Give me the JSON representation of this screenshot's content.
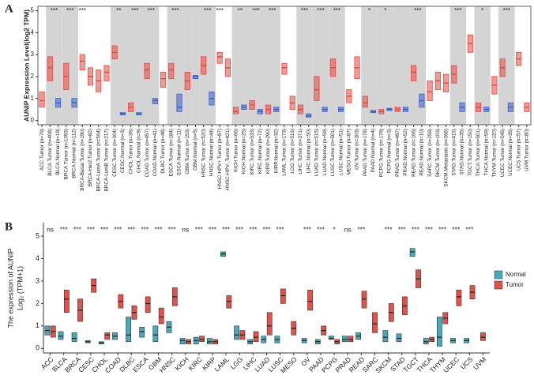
{
  "chart_data": [
    {
      "type": "box",
      "panel": "A",
      "y_label": "AUNIP Expression Level(log2 TPM)",
      "categories": [
        "ACC.Tumor (n=79)",
        "BLCA.Tumor (n=408)",
        "BLCA.Normal (n=19)",
        "BRCA.Tumor (n=1093)",
        "BRCA.Normal (n=112)",
        "BRCA-Basal.Tumor (n=190)",
        "BRCA-Her2.Tumor (n=82)",
        "BRCA-LumA.Tumor (n=564)",
        "BRCA-LumB.Tumor (n=217)",
        "CESC.Tumor (n=304)",
        "CESC.Normal (n=3)",
        "CHOL.Tumor (n=36)",
        "CHOL.Normal (n=9)",
        "COAD.Tumor (n=457)",
        "COAD.Normal (n=41)",
        "DLBC.Tumor (n=48)",
        "ESCA.Tumor (n=184)",
        "ESCA.Normal (n=11)",
        "GBM.Tumor (n=153)",
        "GBM.Normal (n=5)",
        "HNSC.Tumor (n=520)",
        "HNSC.Normal (n=44)",
        "HNSC-HPV+.Tumor (n=97)",
        "HNSC-HPV-.Tumor (n=421)",
        "KICH.Tumor (n=66)",
        "KICH.Normal (n=25)",
        "KIRC.Tumor (n=533)",
        "KIRC.Normal (n=72)",
        "KIRP.Tumor (n=290)",
        "KIRP.Normal (n=32)",
        "LAML.Tumor (n=173)",
        "LGG.Tumor (n=516)",
        "LIHC.Tumor (n=371)",
        "LIHC.Normal (n=50)",
        "LUAD.Tumor (n=515)",
        "LUAD.Normal (n=59)",
        "LUSC.Tumor (n=501)",
        "LUSC.Normal (n=51)",
        "MESO.Tumor (n=87)",
        "OV.Tumor (n=303)",
        "PAAD.Tumor (n=178)",
        "PAAD.Normal (n=4)",
        "PCPG.Tumor (n=179)",
        "PCPG.Normal (n=3)",
        "PRAD.Tumor (n=497)",
        "PRAD.Normal (n=52)",
        "READ.Tumor (n=166)",
        "READ.Normal (n=10)",
        "SARC.Tumor (n=259)",
        "SKCM.Tumor (n=103)",
        "SKCM.Metastasis (n=368)",
        "STAD.Tumor (n=415)",
        "STAD.Normal (n=35)",
        "TGCT.Tumor (n=150)",
        "THCA.Tumor (n=501)",
        "THCA.Normal (n=59)",
        "THYM.Tumor (n=120)",
        "UCEC.Tumor (n=545)",
        "UCEC.Normal (n=35)",
        "UCS.Tumor (n=57)",
        "UVM.Tumor (n=80)"
      ],
      "values": [
        0.9,
        2.4,
        0.8,
        2.0,
        0.8,
        2.7,
        2.0,
        1.8,
        2.2,
        3.1,
        0.3,
        0.6,
        0.3,
        2.3,
        0.9,
        1.9,
        2.3,
        0.6,
        1.8,
        2.0,
        2.5,
        1.0,
        2.9,
        2.4,
        0.4,
        0.6,
        0.7,
        0.4,
        0.5,
        0.5,
        2.4,
        0.8,
        0.5,
        0.2,
        1.4,
        0.5,
        2.4,
        0.5,
        1.1,
        2.4,
        0.8,
        0.4,
        0.4,
        0.5,
        0.5,
        0.5,
        2.2,
        0.9,
        1.3,
        1.8,
        1.7,
        2.1,
        0.6,
        3.5,
        0.6,
        0.5,
        1.6,
        2.4,
        0.6,
        2.8,
        0.6
      ],
      "q1": [
        0.6,
        1.8,
        0.6,
        1.4,
        0.6,
        2.3,
        1.6,
        1.3,
        1.8,
        2.8,
        0.25,
        0.4,
        0.25,
        1.9,
        0.75,
        1.5,
        1.9,
        0.4,
        1.4,
        1.9,
        2.1,
        0.7,
        2.6,
        2.0,
        0.3,
        0.5,
        0.5,
        0.3,
        0.3,
        0.4,
        2.1,
        0.5,
        0.3,
        0.15,
        0.9,
        0.4,
        2.0,
        0.4,
        0.8,
        1.9,
        0.6,
        0.35,
        0.3,
        0.45,
        0.4,
        0.4,
        1.8,
        0.6,
        0.9,
        1.4,
        1.3,
        1.7,
        0.4,
        3.1,
        0.4,
        0.4,
        1.2,
        2.0,
        0.4,
        2.5,
        0.4
      ],
      "q3": [
        1.3,
        2.9,
        1.0,
        2.6,
        1.0,
        3.0,
        2.4,
        2.3,
        2.5,
        3.4,
        0.35,
        0.8,
        0.35,
        2.6,
        1.0,
        2.2,
        2.6,
        1.2,
        2.2,
        2.05,
        2.9,
        1.3,
        3.1,
        2.8,
        0.6,
        0.7,
        0.9,
        0.5,
        0.7,
        0.6,
        2.6,
        1.1,
        0.7,
        0.3,
        2.0,
        0.6,
        2.8,
        0.6,
        1.4,
        2.9,
        1.1,
        0.45,
        0.5,
        0.55,
        0.6,
        0.6,
        2.5,
        1.2,
        1.8,
        2.2,
        2.1,
        2.5,
        0.8,
        3.9,
        0.8,
        0.6,
        2.0,
        2.8,
        0.8,
        3.1,
        0.8
      ],
      "significance": [
        null,
        "***",
        null,
        "***",
        null,
        "***",
        null,
        null,
        null,
        "**",
        null,
        "***",
        null,
        "***",
        null,
        null,
        "***",
        null,
        null,
        null,
        "***",
        null,
        "***",
        null,
        "**",
        null,
        "***",
        null,
        "***",
        null,
        null,
        null,
        "***",
        null,
        "***",
        null,
        "***",
        null,
        null,
        null,
        "*",
        null,
        "*",
        null,
        null,
        null,
        "***",
        null,
        null,
        null,
        null,
        "***",
        null,
        null,
        "*",
        null,
        null,
        "***",
        null,
        null,
        null
      ],
      "tumor_color": "#e8473e",
      "normal_color": "#3a5fcd",
      "shade_color": "#d4d4d4",
      "ylim": [
        -0.2,
        5.2
      ],
      "yticks": [
        0,
        1,
        2,
        3,
        4,
        5
      ]
    },
    {
      "type": "grouped_box",
      "panel": "B",
      "y_label": "The expression of AUNIP",
      "y_label2": "Log₂ (TPM+1)",
      "categories": [
        "ACC",
        "BLCA",
        "BRCA",
        "CESC",
        "CHOL",
        "COAD",
        "DLBC",
        "ESCA",
        "GBM",
        "HNSC",
        "KICH",
        "KIRC",
        "KIRP",
        "LAML",
        "LGG",
        "LIHC",
        "LUAD",
        "LUSC",
        "MESO",
        "OV",
        "PAAD",
        "PCPG",
        "PRAD",
        "READ",
        "SARC",
        "SKCM",
        "STAD",
        "TGCT",
        "THCA",
        "THYM",
        "UCEC",
        "UCS",
        "UVM"
      ],
      "series": [
        {
          "name": "Normal",
          "color": "#4aa9b8",
          "values": [
            0.8,
            0.55,
            0.45,
            0.3,
            0.25,
            0.55,
            0.6,
            0.75,
            0.6,
            0.95,
            0.35,
            0.35,
            0.3,
            4.2,
            0.6,
            0.3,
            0.4,
            0.4,
            null,
            0.35,
            0.3,
            0.45,
            0.4,
            0.55,
            null,
            0.5,
            0.45,
            4.3,
            0.3,
            0.5,
            0.35,
            0.35,
            null
          ],
          "q1": [
            0.6,
            0.4,
            0.3,
            0.25,
            0.2,
            0.4,
            0.3,
            0.5,
            0.3,
            0.7,
            0.2,
            0.2,
            0.2,
            4.1,
            0.4,
            0.2,
            0.25,
            0.25,
            null,
            0.25,
            0.2,
            0.4,
            0.3,
            0.4,
            null,
            0.3,
            0.3,
            4.1,
            0.2,
            0.1,
            0.25,
            0.25,
            null
          ],
          "q3": [
            1.0,
            0.75,
            0.7,
            0.35,
            0.3,
            0.7,
            1.4,
            0.95,
            1.0,
            1.2,
            0.45,
            0.5,
            0.45,
            4.3,
            1.0,
            0.4,
            0.55,
            0.55,
            null,
            0.45,
            0.4,
            0.55,
            0.55,
            0.7,
            null,
            0.8,
            0.65,
            4.45,
            0.45,
            1.4,
            0.45,
            0.45,
            null
          ]
        },
        {
          "name": "Tumor",
          "color": "#e0524a",
          "values": [
            0.75,
            2.2,
            1.7,
            2.8,
            0.6,
            2.1,
            1.6,
            2.0,
            1.4,
            2.3,
            0.3,
            0.4,
            0.3,
            2.1,
            0.6,
            0.5,
            1.0,
            2.35,
            0.9,
            2.1,
            0.8,
            0.3,
            0.4,
            2.2,
            1.1,
            1.6,
            1.9,
            3.1,
            0.4,
            1.35,
            2.3,
            2.5,
            0.5
          ],
          "q1": [
            0.5,
            1.6,
            1.2,
            2.5,
            0.4,
            1.8,
            1.3,
            1.6,
            1.1,
            1.9,
            0.2,
            0.3,
            0.2,
            1.8,
            0.4,
            0.3,
            0.6,
            2.0,
            0.6,
            1.7,
            0.6,
            0.2,
            0.3,
            1.8,
            0.7,
            1.2,
            1.5,
            2.7,
            0.3,
            1.1,
            1.9,
            2.2,
            0.35
          ],
          "q3": [
            1.0,
            2.6,
            2.2,
            3.1,
            0.7,
            2.4,
            1.9,
            2.3,
            1.8,
            2.7,
            0.4,
            0.55,
            0.4,
            2.35,
            0.8,
            0.75,
            1.6,
            2.65,
            1.2,
            2.6,
            1.0,
            0.4,
            0.55,
            2.55,
            1.6,
            2.0,
            2.3,
            3.5,
            0.5,
            1.6,
            2.6,
            2.8,
            0.7
          ]
        }
      ],
      "significance": [
        "ns",
        "***",
        "***",
        "***",
        "***",
        "***",
        "***",
        "***",
        "***",
        "***",
        "ns",
        "***",
        "***",
        "***",
        "***",
        "***",
        "***",
        "***",
        null,
        "***",
        "***",
        "*",
        "ns",
        "***",
        null,
        "***",
        "***",
        "***",
        "***",
        "***",
        "***",
        "***",
        null
      ],
      "ylim": [
        -0.2,
        5.6
      ],
      "yticks": [
        0,
        1,
        2,
        3,
        4,
        5
      ],
      "legend": "right"
    }
  ]
}
